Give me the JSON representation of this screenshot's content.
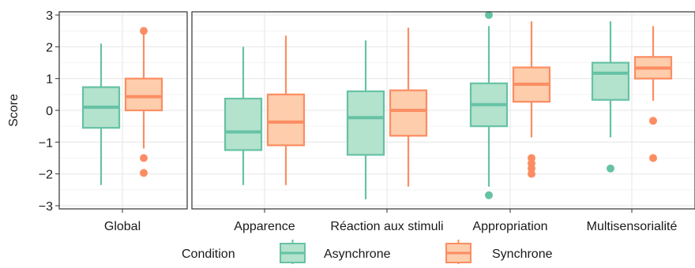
{
  "colors": {
    "asynchrone_stroke": "#66c2a5",
    "asynchrone_fill": "#b3e2cd",
    "synchrone_stroke": "#fc8d62",
    "synchrone_fill": "#fdcdac",
    "panel_border": "#333333",
    "grid_major": "#ebebeb",
    "grid_minor": "#f4f4f4"
  },
  "chart_data": {
    "type": "boxplot",
    "ylabel": "Score",
    "ylim": [
      -3.1,
      3.1
    ],
    "y_ticks": [
      "-3",
      "-2",
      "-1",
      "0",
      "1",
      "2",
      "3"
    ],
    "grid": true,
    "legend": {
      "title": "Condition",
      "position": "bottom",
      "entries": [
        "Asynchrone",
        "Synchrone"
      ]
    },
    "panels": [
      {
        "categories": [
          "Global"
        ],
        "series": [
          {
            "name": "Asynchrone",
            "boxes": [
              {
                "lower_whisker": -2.35,
                "q1": -0.55,
                "median": 0.1,
                "q3": 0.73,
                "upper_whisker": 2.1,
                "outliers": []
              }
            ]
          },
          {
            "name": "Synchrone",
            "boxes": [
              {
                "lower_whisker": -1.2,
                "q1": 0.0,
                "median": 0.43,
                "q3": 1.0,
                "upper_whisker": 2.45,
                "outliers": [
                  2.5,
                  -1.5,
                  -1.97
                ]
              }
            ]
          }
        ]
      },
      {
        "categories": [
          "Apparence",
          "Réaction aux stimuli",
          "Appropriation",
          "Multisensorialité"
        ],
        "series": [
          {
            "name": "Asynchrone",
            "boxes": [
              {
                "lower_whisker": -2.35,
                "q1": -1.25,
                "median": -0.68,
                "q3": 0.37,
                "upper_whisker": 2.0,
                "outliers": []
              },
              {
                "lower_whisker": -2.8,
                "q1": -1.4,
                "median": -0.23,
                "q3": 0.6,
                "upper_whisker": 2.2,
                "outliers": []
              },
              {
                "lower_whisker": -2.4,
                "q1": -0.5,
                "median": 0.18,
                "q3": 0.85,
                "upper_whisker": 2.65,
                "outliers": [
                  3.0,
                  -2.67
                ]
              },
              {
                "lower_whisker": -0.85,
                "q1": 0.33,
                "median": 1.17,
                "q3": 1.5,
                "upper_whisker": 2.8,
                "outliers": [
                  -1.83
                ]
              }
            ]
          },
          {
            "name": "Synchrone",
            "boxes": [
              {
                "lower_whisker": -2.35,
                "q1": -1.1,
                "median": -0.37,
                "q3": 0.5,
                "upper_whisker": 2.35,
                "outliers": []
              },
              {
                "lower_whisker": -2.4,
                "q1": -0.8,
                "median": 0.0,
                "q3": 0.63,
                "upper_whisker": 2.6,
                "outliers": []
              },
              {
                "lower_whisker": -0.85,
                "q1": 0.27,
                "median": 0.82,
                "q3": 1.35,
                "upper_whisker": 2.8,
                "outliers": [
                  -1.5,
                  -1.67,
                  -1.83,
                  -2.0
                ]
              },
              {
                "lower_whisker": 0.3,
                "q1": 1.0,
                "median": 1.33,
                "q3": 1.68,
                "upper_whisker": 2.65,
                "outliers": [
                  -0.33,
                  -1.5
                ]
              }
            ]
          }
        ]
      }
    ]
  }
}
